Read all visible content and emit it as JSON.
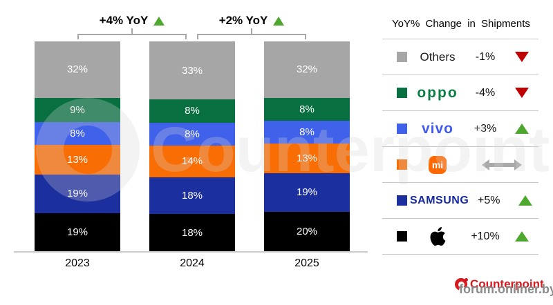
{
  "chart_data": {
    "type": "bar",
    "stacked": true,
    "title": "",
    "categories": [
      "2023",
      "2024",
      "2025"
    ],
    "series": [
      {
        "name": "Apple",
        "color": "#000000",
        "values": [
          19,
          18,
          20
        ]
      },
      {
        "name": "Samsung",
        "color": "#1c2f9e",
        "values": [
          19,
          18,
          19
        ]
      },
      {
        "name": "Xiaomi",
        "color": "#f96d05",
        "values": [
          13,
          14,
          13
        ]
      },
      {
        "name": "vivo",
        "color": "#4062ea",
        "values": [
          8,
          8,
          8
        ]
      },
      {
        "name": "OPPO",
        "color": "#087040",
        "values": [
          9,
          8,
          8
        ]
      },
      {
        "name": "Others",
        "color": "#a6a6a6",
        "values": [
          32,
          33,
          32
        ]
      }
    ],
    "value_suffix": "%",
    "ylim": [
      0,
      100
    ],
    "grid": false,
    "legend_position": "right",
    "annotations": [
      {
        "label": "+4% YoY",
        "direction": "up",
        "from": "2023",
        "to": "2024"
      },
      {
        "label": "+2% YoY",
        "direction": "up",
        "from": "2024",
        "to": "2025"
      }
    ]
  },
  "legend": {
    "title": "YoY% Change in Shipments",
    "rows": [
      {
        "brand": "Others",
        "display": "text",
        "text": "Others",
        "swatch": "#a6a6a6",
        "value": "-1%",
        "trend": "down"
      },
      {
        "brand": "OPPO",
        "display": "logo-text",
        "text": "oppo",
        "logo_color": "#0b7d44",
        "swatch": "#087040",
        "value": "-4%",
        "trend": "down"
      },
      {
        "brand": "vivo",
        "display": "logo-text",
        "text": "vivo",
        "logo_color": "#3f5bf0",
        "swatch": "#4062ea",
        "value": "+3%",
        "trend": "up"
      },
      {
        "brand": "Xiaomi",
        "display": "mi-logo",
        "text": "mi",
        "icon": "xiaomi-mi-logo",
        "swatch": "#f96d05",
        "value": "",
        "trend": "flat"
      },
      {
        "brand": "Samsung",
        "display": "logo-text",
        "text": "SAMSUNG",
        "logo_color": "#1428a0",
        "swatch": "#1c2f9e",
        "value": "+5%",
        "trend": "up"
      },
      {
        "brand": "Apple",
        "display": "apple-logo",
        "text": "",
        "icon": "apple-logo",
        "swatch": "#000000",
        "value": "+10%",
        "trend": "up"
      }
    ]
  },
  "footer": {
    "brand": "Counterpoint"
  },
  "watermarks": {
    "center": "Counterpoint",
    "bottom": "forum.onliner.by"
  },
  "colors": {
    "up": "#4ea72e",
    "down": "#c00000",
    "flat": "#a9a9a9",
    "axis": "#c9c9c9",
    "bracket": "#a6a6a6",
    "brand_red": "#d71920"
  }
}
